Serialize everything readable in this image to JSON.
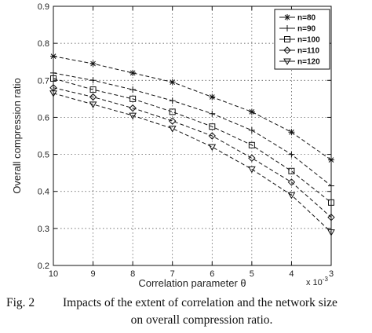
{
  "chart_data": {
    "type": "line",
    "xlabel": "Correlation parameter θ",
    "ylabel": "Overall compression ratio",
    "x_multiplier": "x 10",
    "x_exponent": "-3",
    "x": [
      10,
      9,
      8,
      7,
      6,
      5,
      4,
      3
    ],
    "xlim": [
      10,
      3
    ],
    "ylim": [
      0.2,
      0.9
    ],
    "yticks": [
      0.2,
      0.3,
      0.4,
      0.5,
      0.6,
      0.7,
      0.8,
      0.9
    ],
    "grid": true,
    "legend_position": "top-right",
    "series": [
      {
        "name": "n=80",
        "marker": "star",
        "values": [
          0.765,
          0.745,
          0.72,
          0.695,
          0.655,
          0.615,
          0.56,
          0.485
        ]
      },
      {
        "name": "n=90",
        "marker": "plus",
        "values": [
          0.72,
          0.7,
          0.675,
          0.645,
          0.61,
          0.565,
          0.5,
          0.415
        ]
      },
      {
        "name": "n=100",
        "marker": "square",
        "values": [
          0.705,
          0.675,
          0.65,
          0.615,
          0.575,
          0.525,
          0.455,
          0.37
        ]
      },
      {
        "name": "n=110",
        "marker": "diamond",
        "values": [
          0.68,
          0.655,
          0.625,
          0.59,
          0.55,
          0.49,
          0.425,
          0.33
        ]
      },
      {
        "name": "n=120",
        "marker": "triangle",
        "values": [
          0.665,
          0.635,
          0.605,
          0.57,
          0.52,
          0.46,
          0.39,
          0.29
        ]
      }
    ]
  },
  "caption": {
    "label": "Fig. 2",
    "line1": "Impacts of the extent of correlation and the network size",
    "line2": "on overall compression ratio."
  }
}
